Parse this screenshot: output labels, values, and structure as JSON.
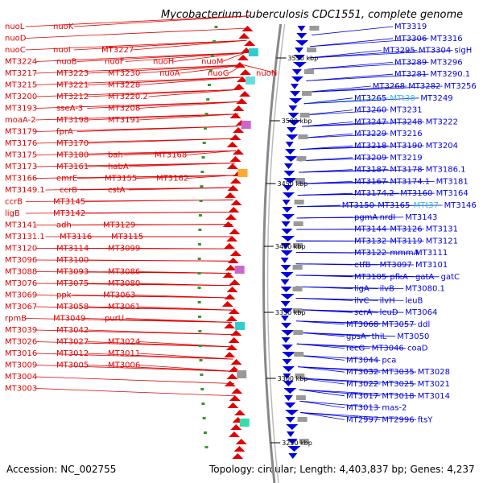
{
  "title": "Mycobacterium tuberculosis CDC1551, complete genome",
  "accession": "Accession: NC_002755",
  "topology": "Topology: circular; Length: 4,403,837 bp; Genes: 4,237",
  "colors": {
    "left_strand": "#e00000",
    "right_strand": "#0000dd",
    "special": "#33bbdd",
    "backbone": "#888888",
    "tick": "#339933"
  },
  "ticks": [
    "3550 kbp",
    "3500 kbp",
    "3450 kbp",
    "3400 kbp",
    "3350 kbp",
    "3300 kbp",
    "3250 kbp"
  ],
  "left_labels": [
    "nuoL",
    "nuoK",
    "nuoD",
    "nuoC",
    "nuoI",
    "MT3227",
    "MT3224",
    "nuoB",
    "nuoF",
    "nuoH",
    "nuoM",
    "MT3217",
    "MT3223",
    "MT3230",
    "nuoA",
    "nuoG",
    "nuoN",
    "MT3215",
    "MT3221",
    "MT3228",
    "MT3200",
    "MT3212",
    "MT3220.2",
    "MT3193",
    "sseA-3",
    "MT3208",
    "moaA-2",
    "MT3198",
    "MT3191",
    "MT3179",
    "fprA",
    "MT3176",
    "MT3170",
    "MT3175",
    "MT3180",
    "bah",
    "MT3168",
    "MT3173",
    "MT3161",
    "habA",
    "MT3166",
    "emrE",
    "MT3155",
    "MT3162",
    "MT3149.1",
    "ccrB",
    "cstA",
    "ccrB",
    "MT3145",
    "ligB",
    "MT3142",
    "MT3141",
    "adh",
    "MT3129",
    "MT3131.1",
    "MT3116",
    "MT3115",
    "MT3120",
    "MT3114",
    "MT3099",
    "MT3096",
    "MT3100",
    "MT3088",
    "MT3093",
    "MT3086",
    "MT3076",
    "MT3075",
    "MT3080",
    "MT3069",
    "ppk",
    "MT3063",
    "MT3067",
    "MT3058",
    "MT3061",
    "rpmB",
    "MT3049",
    "purU",
    "MT3039",
    "MT3042",
    "MT3026",
    "MT3027",
    "MT3024",
    "MT3016",
    "MT3012",
    "MT3011",
    "MT3009",
    "MT3005",
    "MT3006",
    "MT3004",
    "MT3003"
  ],
  "right_labels": [
    "MT3319",
    "MT3306",
    "MT3316",
    "MT3295",
    "MT3304",
    "sigH",
    "MT3289",
    "MT3296",
    "MT3281",
    "MT3290.1",
    "MT3268",
    "MT3282",
    "MT3256",
    "MT3265",
    "MTt38",
    "MT3249",
    "MT3260",
    "MT3231",
    "MT3247",
    "MT3248",
    "MT3222",
    "MT3229",
    "MT3216",
    "MT3218",
    "MT3190",
    "MT3204",
    "MT3209",
    "MT3219",
    "MT3187",
    "MT3178",
    "MT3186.1",
    "MT3167",
    "MT3174.1",
    "MT3181",
    "MT3174.2",
    "MT3160",
    "MT3164",
    "MT3150",
    "MT3165",
    "MTt37",
    "MT3146",
    "pgmA",
    "nrdI",
    "MT3143",
    "MT3144",
    "MT3126",
    "MT3131",
    "MT3132",
    "MT3119",
    "MT3121",
    "MT3122",
    "mmmA",
    "MT3111",
    "etfB",
    "MT3097",
    "MT3101",
    "MT3105",
    "pfkA",
    "gatA",
    "gatC",
    "ligA",
    "ilvB",
    "MT3080.1",
    "ilvC",
    "ilvH",
    "leuB",
    "serA",
    "leuD",
    "MT3064",
    "MT3068",
    "MT3057",
    "ddl",
    "gpsA",
    "thiL",
    "MT3050",
    "recG",
    "MT3046",
    "coaD",
    "MT3044",
    "pca",
    "MT3032",
    "MT3035",
    "MT3028",
    "MT3022",
    "MT3025",
    "MT3021",
    "MT3017",
    "MT3018",
    "MT3014",
    "MT3013",
    "mas-2",
    "MT2997",
    "MT2996",
    "ftsY"
  ]
}
